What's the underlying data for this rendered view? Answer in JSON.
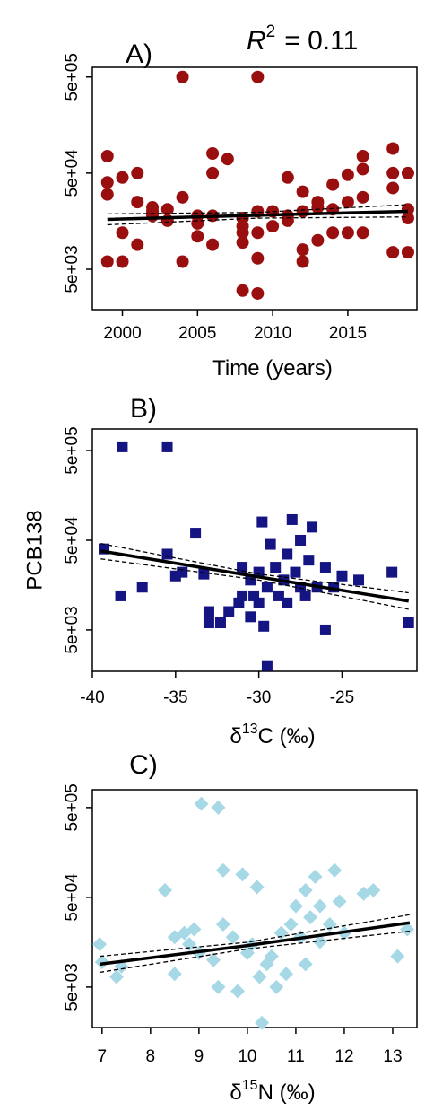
{
  "chart_data": [
    {
      "type": "scatter",
      "panel_label": "A)",
      "annotation": {
        "symbol": "R",
        "superscript": "2",
        "text": "= 0.11"
      },
      "x_label": "Time (years)",
      "marker": "circle",
      "color": "#990f0f",
      "log_y": true,
      "xlim": [
        1998,
        2019.6
      ],
      "xticks": [
        2000,
        2005,
        2010,
        2015
      ],
      "ylim": [
        1900,
        630000
      ],
      "yticks": [
        {
          "value": 5000,
          "label": "5e+03"
        },
        {
          "value": 50000,
          "label": "5e+04"
        },
        {
          "value": 500000,
          "label": "5e+05"
        }
      ],
      "x": [
        1999,
        1999,
        1999,
        1999,
        2000,
        2000,
        2000,
        2001,
        2001,
        2001,
        2002,
        2002,
        2002,
        2003,
        2003,
        2004,
        2004,
        2004,
        2005,
        2005,
        2005,
        2006,
        2006,
        2006,
        2006,
        2007,
        2008,
        2008,
        2008,
        2008,
        2008,
        2009,
        2009,
        2009,
        2009,
        2009,
        2010,
        2010,
        2011,
        2011,
        2011,
        2012,
        2012,
        2012,
        2012,
        2013,
        2013,
        2013,
        2014,
        2014,
        2014,
        2015,
        2015,
        2015,
        2016,
        2016,
        2016,
        2016,
        2018,
        2018,
        2018,
        2018,
        2019,
        2019,
        2019,
        2019
      ],
      "y": [
        75000,
        40000,
        30000,
        6000,
        12000,
        6000,
        45000,
        9000,
        50000,
        25000,
        22000,
        18000,
        20000,
        16000,
        21000,
        500000,
        28000,
        6000,
        15000,
        11000,
        18000,
        80000,
        50000,
        18000,
        9000,
        70000,
        3000,
        12000,
        14000,
        9500,
        17000,
        500000,
        2800,
        6500,
        12000,
        20000,
        20000,
        14000,
        45000,
        16000,
        18000,
        32000,
        8000,
        6000,
        20000,
        22000,
        25000,
        10000,
        38000,
        12000,
        21000,
        48000,
        12000,
        25000,
        75000,
        55000,
        28000,
        12000,
        90000,
        50000,
        35000,
        7500,
        50000,
        7500,
        17000,
        21000
      ],
      "fit": {
        "x": [
          1999,
          2009,
          2019
        ],
        "y": [
          16500,
          18200,
          20000
        ]
      },
      "ci_lower": {
        "x": [
          1999,
          2009,
          2019
        ],
        "y": [
          14500,
          17000,
          17500
        ]
      },
      "ci_upper": {
        "x": [
          1999,
          2009,
          2019
        ],
        "y": [
          18800,
          19500,
          23500
        ]
      }
    },
    {
      "type": "scatter",
      "panel_label": "B)",
      "y_label": "PCB138",
      "x_label": {
        "symbol": "δ",
        "superscript": "13",
        "text": "C (‰)"
      },
      "marker": "square",
      "color": "#141482",
      "log_y": true,
      "xlim": [
        -40,
        -20.5
      ],
      "xticks": [
        -40,
        -35,
        -30,
        -25
      ],
      "ylim": [
        1730,
        870000
      ],
      "yticks": [
        {
          "value": 5000,
          "label": "5e+03"
        },
        {
          "value": 50000,
          "label": "5e+04"
        },
        {
          "value": 500000,
          "label": "5e+05"
        }
      ],
      "x": [
        -39.3,
        -38.3,
        -38.2,
        -37,
        -35.5,
        -35.5,
        -35,
        -34.6,
        -33.8,
        -33.3,
        -33,
        -33,
        -32.3,
        -31.8,
        -31.2,
        -31,
        -31,
        -30.5,
        -30.5,
        -30.3,
        -30,
        -30,
        -29.8,
        -29.7,
        -29.5,
        -29.5,
        -29.3,
        -29,
        -28.8,
        -28.5,
        -28.3,
        -28.3,
        -28,
        -27.8,
        -27.5,
        -27.5,
        -27.2,
        -27,
        -26.8,
        -26.5,
        -26,
        -26,
        -25.5,
        -25,
        -24,
        -22,
        -21
      ],
      "y": [
        40000,
        12000,
        550000,
        15000,
        550000,
        35000,
        20000,
        22000,
        60000,
        21000,
        8000,
        6000,
        6000,
        8000,
        10000,
        12000,
        25000,
        7000,
        18000,
        12000,
        22000,
        10000,
        80000,
        5500,
        2000,
        15000,
        45000,
        25000,
        12000,
        18000,
        10000,
        35000,
        85000,
        22000,
        15000,
        50000,
        12000,
        30000,
        70000,
        15000,
        5000,
        25000,
        15000,
        20000,
        18000,
        22000,
        6000
      ],
      "fit": {
        "x": [
          -39.5,
          -30,
          -21
        ],
        "y": [
          38000,
          19500,
          10500
        ]
      },
      "ci_lower": {
        "x": [
          -39.5,
          -30,
          -21
        ],
        "y": [
          31000,
          18000,
          8500
        ]
      },
      "ci_upper": {
        "x": [
          -39.5,
          -30,
          -21
        ],
        "y": [
          46000,
          21000,
          13000
        ]
      }
    },
    {
      "type": "scatter",
      "panel_label": "C)",
      "x_label": {
        "symbol": "δ",
        "superscript": "15",
        "text": "N (‰)"
      },
      "marker": "diamond",
      "color": "#a6d8e6",
      "log_y": true,
      "xlim": [
        6.8,
        13.5
      ],
      "xticks": [
        7,
        8,
        9,
        10,
        11,
        12,
        13
      ],
      "ylim": [
        1770,
        790000
      ],
      "yticks": [
        {
          "value": 5000,
          "label": "5e+03"
        },
        {
          "value": 50000,
          "label": "5e+04"
        },
        {
          "value": 500000,
          "label": "5e+05"
        }
      ],
      "x": [
        6.95,
        7,
        7.3,
        7.4,
        8.3,
        8.5,
        8.5,
        8.7,
        8.8,
        8.9,
        9,
        9.05,
        9.3,
        9.4,
        9.4,
        9.5,
        9.5,
        9.7,
        9.8,
        9.9,
        10,
        10.1,
        10.2,
        10.25,
        10.3,
        10.4,
        10.5,
        10.6,
        10.7,
        10.8,
        10.9,
        11,
        11.1,
        11.2,
        11.2,
        11.3,
        11.4,
        11.5,
        11.5,
        11.7,
        11.8,
        11.9,
        12,
        12.4,
        12.6,
        13.1,
        13.3
      ],
      "y": [
        15000,
        9500,
        6500,
        8500,
        60000,
        7000,
        18000,
        20000,
        15000,
        22000,
        12000,
        550000,
        10000,
        500000,
        5000,
        100000,
        25000,
        18000,
        4500,
        90000,
        12000,
        15000,
        65000,
        6500,
        2000,
        9000,
        11000,
        5000,
        20000,
        7000,
        25000,
        40000,
        18000,
        9000,
        60000,
        30000,
        85000,
        40000,
        16000,
        25000,
        100000,
        45000,
        20000,
        55000,
        60000,
        11000,
        22000
      ],
      "fit": {
        "x": [
          6.95,
          10,
          13.35
        ],
        "y": [
          9000,
          14500,
          26000
        ]
      },
      "ci_lower": {
        "x": [
          6.95,
          10,
          13.35
        ],
        "y": [
          7300,
          13300,
          21000
        ]
      },
      "ci_upper": {
        "x": [
          6.95,
          10,
          13.35
        ],
        "y": [
          11000,
          15800,
          32000
        ]
      }
    }
  ]
}
